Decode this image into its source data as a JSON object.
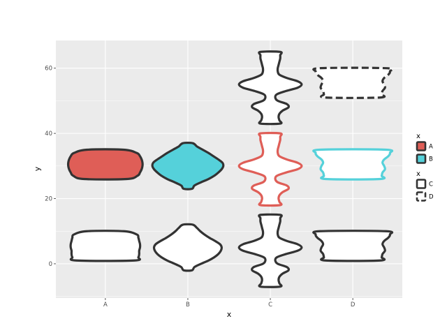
{
  "chart_data": {
    "type": "violin",
    "title": "",
    "xlabel": "x",
    "ylabel": "y",
    "categories": [
      "A",
      "B",
      "C",
      "D"
    ],
    "ylim": [
      -10.5,
      68.5
    ],
    "yticks": [
      0,
      20,
      40,
      60
    ],
    "grid": true,
    "background": "#ebebeb",
    "violins": [
      {
        "x": "A",
        "y_min": 1,
        "y_max": 10,
        "half_width": 0.42,
        "fill": "#ffffff",
        "color": "#333333",
        "dashed": false,
        "profile": [
          [
            1,
            0.35
          ],
          [
            2,
            0.4
          ],
          [
            3,
            0.41
          ],
          [
            4,
            0.41
          ],
          [
            5,
            0.42
          ],
          [
            6,
            0.42
          ],
          [
            7,
            0.41
          ],
          [
            8,
            0.4
          ],
          [
            9,
            0.38
          ],
          [
            10,
            0.22
          ]
        ]
      },
      {
        "x": "A",
        "y_min": 26,
        "y_max": 35,
        "half_width": 0.45,
        "fill": "#df5e57",
        "color": "#333333",
        "dashed": false,
        "profile": [
          [
            26,
            0.26
          ],
          [
            27,
            0.39
          ],
          [
            28,
            0.42
          ],
          [
            29,
            0.44
          ],
          [
            30,
            0.45
          ],
          [
            31,
            0.45
          ],
          [
            32,
            0.44
          ],
          [
            33,
            0.42
          ],
          [
            34,
            0.38
          ],
          [
            35,
            0.22
          ]
        ]
      },
      {
        "x": "B",
        "y_min": -2,
        "y_max": 12,
        "half_width": 0.41,
        "fill": "#ffffff",
        "color": "#333333",
        "dashed": false,
        "profile": [
          [
            -2,
            0.05
          ],
          [
            -1,
            0.08
          ],
          [
            0,
            0.16
          ],
          [
            1,
            0.25
          ],
          [
            2,
            0.32
          ],
          [
            3,
            0.37
          ],
          [
            4,
            0.4
          ],
          [
            5,
            0.41
          ],
          [
            6,
            0.39
          ],
          [
            7,
            0.33
          ],
          [
            8,
            0.26
          ],
          [
            9,
            0.2
          ],
          [
            10,
            0.15
          ],
          [
            11,
            0.11
          ],
          [
            12,
            0.06
          ]
        ]
      },
      {
        "x": "B",
        "y_min": 23,
        "y_max": 37,
        "half_width": 0.43,
        "fill": "#55d1da",
        "color": "#333333",
        "dashed": false,
        "profile": [
          [
            23,
            0.05
          ],
          [
            24,
            0.08
          ],
          [
            25,
            0.16
          ],
          [
            26,
            0.25
          ],
          [
            27,
            0.32
          ],
          [
            28,
            0.37
          ],
          [
            29,
            0.41
          ],
          [
            30,
            0.43
          ],
          [
            31,
            0.42
          ],
          [
            32,
            0.37
          ],
          [
            33,
            0.31
          ],
          [
            34,
            0.25
          ],
          [
            35,
            0.18
          ],
          [
            36,
            0.11
          ],
          [
            37,
            0.06
          ]
        ]
      },
      {
        "x": "C",
        "y_min": -7,
        "y_max": 15,
        "half_width": 0.38,
        "fill": "#ffffff",
        "color": "#333333",
        "dashed": false,
        "profile": [
          [
            -7,
            0.12
          ],
          [
            -6,
            0.11
          ],
          [
            -5,
            0.1
          ],
          [
            -4,
            0.11
          ],
          [
            -3,
            0.15
          ],
          [
            -2,
            0.22
          ],
          [
            -1,
            0.2
          ],
          [
            0,
            0.09
          ],
          [
            1,
            0.06
          ],
          [
            2,
            0.08
          ],
          [
            3,
            0.19
          ],
          [
            4,
            0.33
          ],
          [
            5,
            0.38
          ],
          [
            6,
            0.33
          ],
          [
            7,
            0.2
          ],
          [
            8,
            0.11
          ],
          [
            9,
            0.09
          ],
          [
            10,
            0.09
          ],
          [
            11,
            0.1
          ],
          [
            12,
            0.11
          ],
          [
            13,
            0.12
          ],
          [
            14,
            0.12
          ],
          [
            15,
            0.12
          ]
        ]
      },
      {
        "x": "C",
        "y_min": 18,
        "y_max": 40,
        "half_width": 0.38,
        "fill": "#ffffff",
        "color": "#df5e57",
        "dashed": false,
        "profile": [
          [
            18,
            0.12
          ],
          [
            19,
            0.11
          ],
          [
            20,
            0.1
          ],
          [
            21,
            0.11
          ],
          [
            22,
            0.15
          ],
          [
            23,
            0.22
          ],
          [
            24,
            0.2
          ],
          [
            25,
            0.09
          ],
          [
            26,
            0.06
          ],
          [
            27,
            0.08
          ],
          [
            28,
            0.19
          ],
          [
            29,
            0.33
          ],
          [
            30,
            0.38
          ],
          [
            31,
            0.33
          ],
          [
            32,
            0.2
          ],
          [
            33,
            0.11
          ],
          [
            34,
            0.09
          ],
          [
            35,
            0.09
          ],
          [
            36,
            0.1
          ],
          [
            37,
            0.11
          ],
          [
            38,
            0.12
          ],
          [
            39,
            0.12
          ],
          [
            40,
            0.12
          ]
        ]
      },
      {
        "x": "C",
        "y_min": 43,
        "y_max": 65,
        "half_width": 0.38,
        "fill": "#ffffff",
        "color": "#333333",
        "dashed": false,
        "profile": [
          [
            43,
            0.12
          ],
          [
            44,
            0.11
          ],
          [
            45,
            0.1
          ],
          [
            46,
            0.11
          ],
          [
            47,
            0.15
          ],
          [
            48,
            0.22
          ],
          [
            49,
            0.2
          ],
          [
            50,
            0.09
          ],
          [
            51,
            0.06
          ],
          [
            52,
            0.08
          ],
          [
            53,
            0.19
          ],
          [
            54,
            0.33
          ],
          [
            55,
            0.38
          ],
          [
            56,
            0.33
          ],
          [
            57,
            0.2
          ],
          [
            58,
            0.11
          ],
          [
            59,
            0.09
          ],
          [
            60,
            0.09
          ],
          [
            61,
            0.1
          ],
          [
            62,
            0.11
          ],
          [
            63,
            0.12
          ],
          [
            64,
            0.12
          ],
          [
            65,
            0.12
          ]
        ]
      },
      {
        "x": "D",
        "y_min": 1,
        "y_max": 10,
        "half_width": 0.45,
        "fill": "#ffffff",
        "color": "#333333",
        "dashed": false,
        "profile": [
          [
            1,
            0.33
          ],
          [
            2,
            0.35
          ],
          [
            3,
            0.36
          ],
          [
            4,
            0.39
          ],
          [
            5,
            0.38
          ],
          [
            6,
            0.36
          ],
          [
            7,
            0.38
          ],
          [
            8,
            0.43
          ],
          [
            9,
            0.45
          ],
          [
            10,
            0.4
          ]
        ]
      },
      {
        "x": "D",
        "y_min": 26,
        "y_max": 35,
        "half_width": 0.45,
        "fill": "#ffffff",
        "color": "#55d1da",
        "dashed": false,
        "profile": [
          [
            26,
            0.33
          ],
          [
            27,
            0.35
          ],
          [
            28,
            0.36
          ],
          [
            29,
            0.39
          ],
          [
            30,
            0.38
          ],
          [
            31,
            0.36
          ],
          [
            32,
            0.38
          ],
          [
            33,
            0.43
          ],
          [
            34,
            0.45
          ],
          [
            35,
            0.4
          ]
        ]
      },
      {
        "x": "D",
        "y_min": 51,
        "y_max": 60,
        "half_width": 0.45,
        "fill": "#ffffff",
        "color": "#333333",
        "dashed": true,
        "profile": [
          [
            51,
            0.33
          ],
          [
            52,
            0.35
          ],
          [
            53,
            0.36
          ],
          [
            54,
            0.39
          ],
          [
            55,
            0.38
          ],
          [
            56,
            0.36
          ],
          [
            57,
            0.38
          ],
          [
            58,
            0.43
          ],
          [
            59,
            0.45
          ],
          [
            60,
            0.4
          ]
        ]
      }
    ],
    "legend": {
      "position": "right",
      "groups": [
        {
          "title": "x",
          "type": "fill",
          "entries": [
            {
              "label": "A",
              "fill": "#df5e57",
              "color": "#333333",
              "dashed": false
            },
            {
              "label": "B",
              "fill": "#55d1da",
              "color": "#333333",
              "dashed": false
            }
          ]
        },
        {
          "title": "x",
          "type": "linetype",
          "entries": [
            {
              "label": "C",
              "fill": "#ffffff",
              "color": "#333333",
              "dashed": false
            },
            {
              "label": "D",
              "fill": "#ffffff",
              "color": "#333333",
              "dashed": true
            }
          ]
        }
      ]
    }
  }
}
